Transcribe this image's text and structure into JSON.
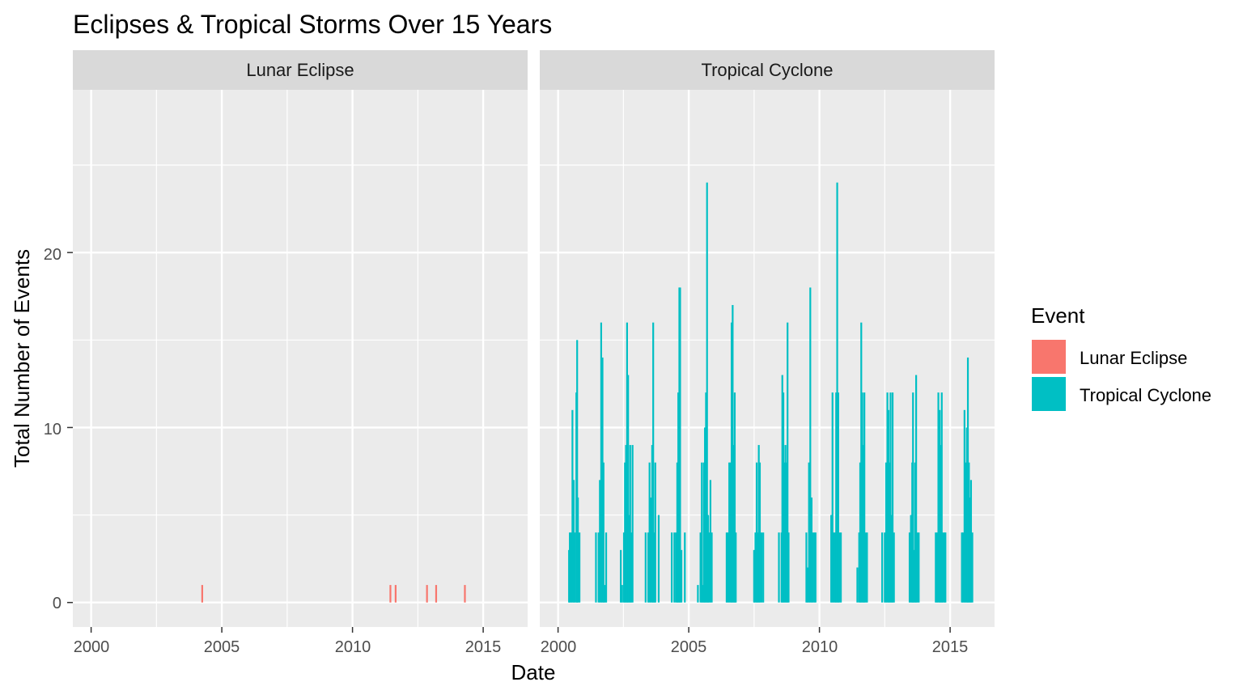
{
  "chart_data": {
    "type": "bar",
    "title": "Eclipses & Tropical Storms Over 15 Years",
    "xlabel": "Date",
    "ylabel": "Total Number of Events",
    "x_ticks": [
      "2000",
      "2005",
      "2010",
      "2015"
    ],
    "y_ticks": [
      "0",
      "10",
      "20"
    ],
    "xlim": [
      1999.3,
      2016.7
    ],
    "ylim": [
      -1.4,
      29.3
    ],
    "grid": true,
    "legend": {
      "title": "Event",
      "placement": "right",
      "items": [
        {
          "name": "Lunar Eclipse",
          "color": "#F8766D"
        },
        {
          "name": "Tropical Cyclone",
          "color": "#00BFC4"
        }
      ]
    },
    "facets": [
      {
        "label": "Lunar Eclipse",
        "color": "#F8766D",
        "points": [
          {
            "x": 2004.25,
            "y": 1
          },
          {
            "x": 2011.45,
            "y": 1
          },
          {
            "x": 2011.65,
            "y": 1
          },
          {
            "x": 2012.85,
            "y": 1
          },
          {
            "x": 2013.2,
            "y": 1
          },
          {
            "x": 2014.3,
            "y": 1
          }
        ]
      },
      {
        "label": "Tropical Cyclone",
        "color": "#00BFC4",
        "points": [
          {
            "x": 2000.42,
            "y": 3
          },
          {
            "x": 2000.45,
            "y": 4
          },
          {
            "x": 2000.5,
            "y": 4
          },
          {
            "x": 2000.55,
            "y": 11
          },
          {
            "x": 2000.6,
            "y": 7
          },
          {
            "x": 2000.64,
            "y": 4
          },
          {
            "x": 2000.7,
            "y": 12
          },
          {
            "x": 2000.73,
            "y": 15
          },
          {
            "x": 2000.76,
            "y": 6
          },
          {
            "x": 2000.82,
            "y": 4
          },
          {
            "x": 2001.45,
            "y": 4
          },
          {
            "x": 2001.55,
            "y": 4
          },
          {
            "x": 2001.6,
            "y": 7
          },
          {
            "x": 2001.65,
            "y": 16
          },
          {
            "x": 2001.7,
            "y": 14
          },
          {
            "x": 2001.74,
            "y": 8
          },
          {
            "x": 2001.78,
            "y": 1
          },
          {
            "x": 2001.84,
            "y": 4
          },
          {
            "x": 2002.4,
            "y": 3
          },
          {
            "x": 2002.45,
            "y": 1
          },
          {
            "x": 2002.52,
            "y": 4
          },
          {
            "x": 2002.56,
            "y": 8
          },
          {
            "x": 2002.6,
            "y": 9
          },
          {
            "x": 2002.64,
            "y": 16
          },
          {
            "x": 2002.68,
            "y": 13
          },
          {
            "x": 2002.72,
            "y": 5
          },
          {
            "x": 2002.76,
            "y": 9
          },
          {
            "x": 2002.8,
            "y": 4
          },
          {
            "x": 2002.85,
            "y": 9
          },
          {
            "x": 2003.35,
            "y": 4
          },
          {
            "x": 2003.45,
            "y": 4
          },
          {
            "x": 2003.5,
            "y": 8
          },
          {
            "x": 2003.55,
            "y": 6
          },
          {
            "x": 2003.6,
            "y": 9
          },
          {
            "x": 2003.64,
            "y": 16
          },
          {
            "x": 2003.68,
            "y": 4
          },
          {
            "x": 2003.72,
            "y": 8
          },
          {
            "x": 2003.85,
            "y": 5
          },
          {
            "x": 2004.35,
            "y": 4
          },
          {
            "x": 2004.45,
            "y": 4
          },
          {
            "x": 2004.52,
            "y": 4
          },
          {
            "x": 2004.56,
            "y": 8
          },
          {
            "x": 2004.6,
            "y": 12
          },
          {
            "x": 2004.64,
            "y": 18
          },
          {
            "x": 2004.67,
            "y": 18
          },
          {
            "x": 2004.72,
            "y": 3
          },
          {
            "x": 2004.85,
            "y": 4
          },
          {
            "x": 2005.35,
            "y": 1
          },
          {
            "x": 2005.45,
            "y": 4
          },
          {
            "x": 2005.5,
            "y": 8
          },
          {
            "x": 2005.54,
            "y": 1
          },
          {
            "x": 2005.58,
            "y": 8
          },
          {
            "x": 2005.62,
            "y": 10
          },
          {
            "x": 2005.66,
            "y": 12
          },
          {
            "x": 2005.7,
            "y": 24
          },
          {
            "x": 2005.74,
            "y": 5
          },
          {
            "x": 2005.78,
            "y": 4
          },
          {
            "x": 2005.83,
            "y": 7
          },
          {
            "x": 2005.88,
            "y": 4
          },
          {
            "x": 2006.45,
            "y": 4
          },
          {
            "x": 2006.5,
            "y": 4
          },
          {
            "x": 2006.55,
            "y": 8
          },
          {
            "x": 2006.6,
            "y": 8
          },
          {
            "x": 2006.64,
            "y": 16
          },
          {
            "x": 2006.68,
            "y": 17
          },
          {
            "x": 2006.72,
            "y": 9
          },
          {
            "x": 2006.76,
            "y": 12
          },
          {
            "x": 2006.8,
            "y": 4
          },
          {
            "x": 2007.5,
            "y": 3
          },
          {
            "x": 2007.55,
            "y": 4
          },
          {
            "x": 2007.6,
            "y": 8
          },
          {
            "x": 2007.64,
            "y": 4
          },
          {
            "x": 2007.68,
            "y": 9
          },
          {
            "x": 2007.72,
            "y": 8
          },
          {
            "x": 2007.78,
            "y": 4
          },
          {
            "x": 2007.85,
            "y": 4
          },
          {
            "x": 2008.45,
            "y": 4
          },
          {
            "x": 2008.55,
            "y": 4
          },
          {
            "x": 2008.58,
            "y": 13
          },
          {
            "x": 2008.62,
            "y": 12
          },
          {
            "x": 2008.66,
            "y": 8
          },
          {
            "x": 2008.7,
            "y": 9
          },
          {
            "x": 2008.74,
            "y": 8
          },
          {
            "x": 2008.78,
            "y": 16
          },
          {
            "x": 2008.82,
            "y": 4
          },
          {
            "x": 2009.5,
            "y": 4
          },
          {
            "x": 2009.55,
            "y": 2
          },
          {
            "x": 2009.6,
            "y": 8
          },
          {
            "x": 2009.65,
            "y": 18
          },
          {
            "x": 2009.7,
            "y": 6
          },
          {
            "x": 2009.74,
            "y": 4
          },
          {
            "x": 2009.8,
            "y": 4
          },
          {
            "x": 2009.85,
            "y": 4
          },
          {
            "x": 2010.45,
            "y": 5
          },
          {
            "x": 2010.5,
            "y": 12
          },
          {
            "x": 2010.55,
            "y": 4
          },
          {
            "x": 2010.6,
            "y": 4
          },
          {
            "x": 2010.64,
            "y": 12
          },
          {
            "x": 2010.68,
            "y": 24
          },
          {
            "x": 2010.72,
            "y": 12
          },
          {
            "x": 2010.76,
            "y": 4
          },
          {
            "x": 2010.82,
            "y": 4
          },
          {
            "x": 2011.45,
            "y": 2
          },
          {
            "x": 2011.52,
            "y": 4
          },
          {
            "x": 2011.56,
            "y": 8
          },
          {
            "x": 2011.6,
            "y": 16
          },
          {
            "x": 2011.64,
            "y": 12
          },
          {
            "x": 2011.68,
            "y": 9
          },
          {
            "x": 2011.72,
            "y": 12
          },
          {
            "x": 2011.76,
            "y": 4
          },
          {
            "x": 2011.82,
            "y": 4
          },
          {
            "x": 2012.4,
            "y": 4
          },
          {
            "x": 2012.5,
            "y": 4
          },
          {
            "x": 2012.55,
            "y": 8
          },
          {
            "x": 2012.6,
            "y": 12
          },
          {
            "x": 2012.64,
            "y": 11
          },
          {
            "x": 2012.68,
            "y": 8
          },
          {
            "x": 2012.72,
            "y": 12
          },
          {
            "x": 2012.76,
            "y": 5
          },
          {
            "x": 2012.8,
            "y": 12
          },
          {
            "x": 2012.85,
            "y": 4
          },
          {
            "x": 2013.45,
            "y": 4
          },
          {
            "x": 2013.5,
            "y": 5
          },
          {
            "x": 2013.55,
            "y": 8
          },
          {
            "x": 2013.58,
            "y": 12
          },
          {
            "x": 2013.62,
            "y": 3
          },
          {
            "x": 2013.66,
            "y": 8
          },
          {
            "x": 2013.7,
            "y": 13
          },
          {
            "x": 2013.74,
            "y": 4
          },
          {
            "x": 2013.8,
            "y": 4
          },
          {
            "x": 2014.45,
            "y": 4
          },
          {
            "x": 2014.5,
            "y": 4
          },
          {
            "x": 2014.55,
            "y": 12
          },
          {
            "x": 2014.6,
            "y": 11
          },
          {
            "x": 2014.64,
            "y": 9
          },
          {
            "x": 2014.68,
            "y": 12
          },
          {
            "x": 2014.72,
            "y": 4
          },
          {
            "x": 2014.78,
            "y": 4
          },
          {
            "x": 2014.82,
            "y": 4
          },
          {
            "x": 2015.45,
            "y": 4
          },
          {
            "x": 2015.5,
            "y": 4
          },
          {
            "x": 2015.55,
            "y": 11
          },
          {
            "x": 2015.6,
            "y": 8
          },
          {
            "x": 2015.64,
            "y": 10
          },
          {
            "x": 2015.68,
            "y": 14
          },
          {
            "x": 2015.72,
            "y": 8
          },
          {
            "x": 2015.76,
            "y": 6
          },
          {
            "x": 2015.8,
            "y": 7
          },
          {
            "x": 2015.85,
            "y": 4
          }
        ]
      }
    ]
  }
}
